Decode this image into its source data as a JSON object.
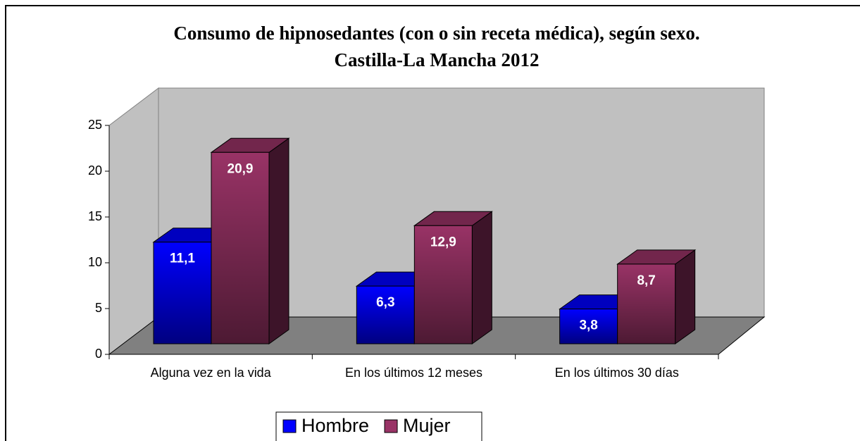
{
  "chart_data": {
    "type": "bar3d",
    "title": [
      "Consumo de hipnosedantes (con o sin receta médica), según sexo.",
      "Castilla-La Mancha 2012"
    ],
    "categories": [
      "Alguna vez en la vida",
      "En los últimos 12 meses",
      "En los últimos 30 días"
    ],
    "series": [
      {
        "name": "Hombre",
        "color": "#0000ff",
        "values": [
          11.1,
          6.3,
          3.8
        ],
        "value_labels": [
          "11,1",
          "6,3",
          "3,8"
        ]
      },
      {
        "name": "Mujer",
        "color": "#993366",
        "values": [
          20.9,
          12.9,
          8.7
        ],
        "value_labels": [
          "20,9",
          "12,9",
          "8,7"
        ]
      }
    ],
    "ylim": [
      0,
      25
    ],
    "yticks": [
      0,
      5,
      10,
      15,
      20,
      25
    ],
    "legend": "bottom"
  }
}
